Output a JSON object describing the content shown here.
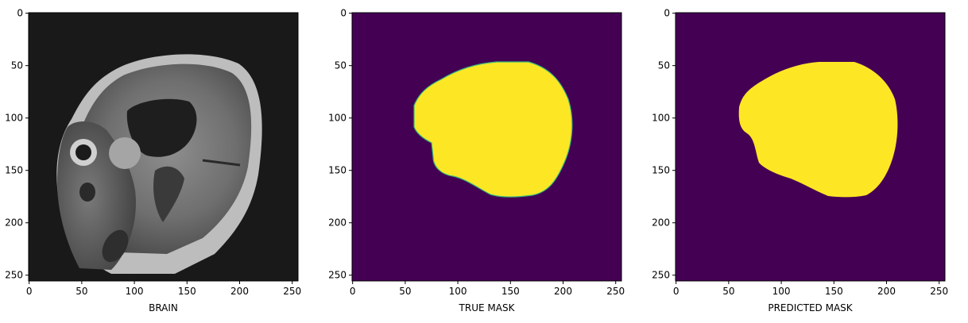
{
  "panels": [
    {
      "id": "brain",
      "xlabel": "BRAIN",
      "kind": "mri-image"
    },
    {
      "id": "true-mask",
      "xlabel": "TRUE MASK",
      "kind": "mask"
    },
    {
      "id": "predicted-mask",
      "xlabel": "PREDICTED MASK",
      "kind": "mask"
    }
  ],
  "axes": {
    "x_ticks": [
      "0",
      "50",
      "100",
      "150",
      "200",
      "250"
    ],
    "y_ticks": [
      "0",
      "50",
      "100",
      "150",
      "200",
      "250"
    ],
    "range": [
      0,
      255
    ]
  },
  "colors": {
    "mask_background": "#440154",
    "mask_foreground": "#fde725",
    "mri_background": "#191919"
  }
}
